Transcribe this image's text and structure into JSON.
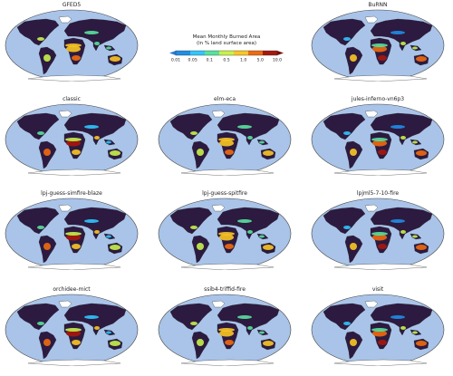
{
  "panels": [
    {
      "title": "GFED5"
    },
    {
      "title": "BuRNN"
    },
    {
      "title": "classic"
    },
    {
      "title": "elm-eca"
    },
    {
      "title": "jules-inferno-vn6p3"
    },
    {
      "title": "lpj-guess-simfire-blaze"
    },
    {
      "title": "lpj-guess-spitfire"
    },
    {
      "title": "lpjml5-7-10-fire"
    },
    {
      "title": "orchidee-mict"
    },
    {
      "title": "ssib4-triffid-fire"
    },
    {
      "title": "visit"
    }
  ],
  "legend": {
    "title_line1": "Mean Monthly Burned Area",
    "title_line2": "(in % land surface area)",
    "ticks": [
      "0.01",
      "0.05",
      "0.1",
      "0.5",
      "1.0",
      "5.0",
      "10.0"
    ],
    "colors": [
      "#1e8ee8",
      "#2ec7ff",
      "#57e39d",
      "#c7f24a",
      "#f9c623",
      "#f06a10",
      "#a8170c"
    ],
    "over_color": "#7a0a06",
    "under_color": "#2b7bd6"
  },
  "map_colors": {
    "ocean": "#a9c4e8",
    "no_fire": "#2d1a40",
    "ice": "#ffffff"
  }
}
